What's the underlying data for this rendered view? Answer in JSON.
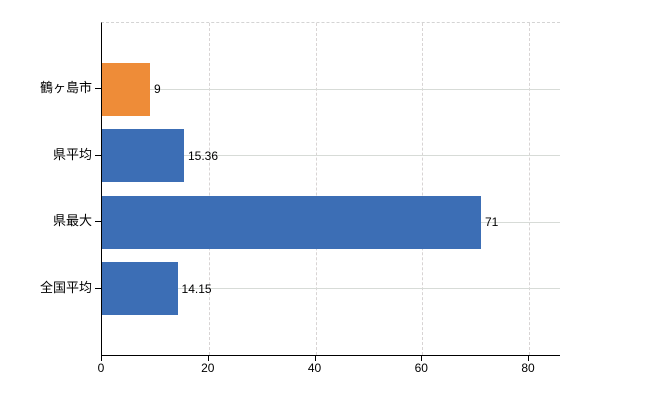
{
  "chart_data": {
    "type": "bar",
    "orientation": "horizontal",
    "title": "",
    "xlabel": "",
    "ylabel": "",
    "categories": [
      "鶴ヶ島市",
      "県平均",
      "県最大",
      "全国平均"
    ],
    "values": [
      9,
      15.36,
      71,
      14.15
    ],
    "value_labels": [
      "9",
      "15.36",
      "71",
      "14.15"
    ],
    "bar_colors": [
      "#ee8c38",
      "#3c6eb5",
      "#3c6eb5",
      "#3c6eb5"
    ],
    "x_axis": {
      "min": 0,
      "max": 85.8,
      "ticks": [
        0,
        20,
        40,
        60,
        80
      ],
      "tick_labels": [
        "0",
        "20",
        "40",
        "60",
        "80"
      ]
    },
    "grid": true,
    "legend": false
  },
  "colors": {
    "bar_orange": "#ee8c38",
    "bar_blue": "#3c6eb5",
    "horizontal_gridline": "#d7dbd7",
    "vertical_gridline": "#d8d4d4",
    "axis": "#000000",
    "text": "#000000",
    "background": "#ffffff"
  }
}
